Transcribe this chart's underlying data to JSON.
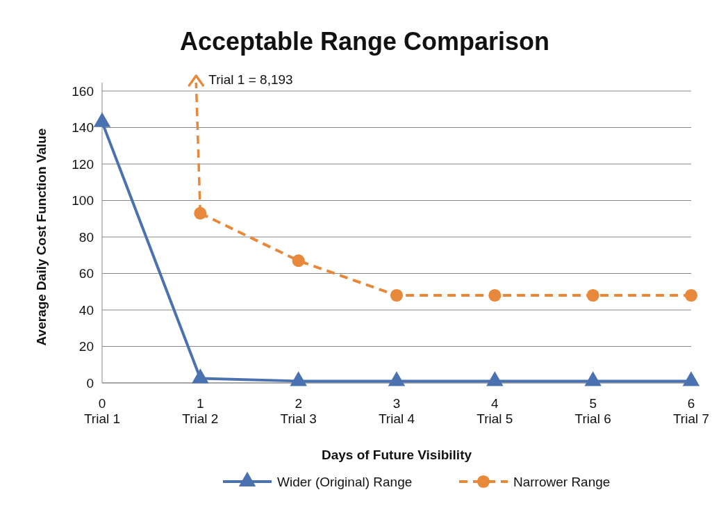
{
  "chart_data": {
    "type": "line",
    "title": "Acceptable Range Comparison",
    "xlabel": "Days of Future Visibility",
    "ylabel": "Average Daily Cost Function Value",
    "categories": [
      "0\nTrial 1",
      "1\nTrial 2",
      "2\nTrial 3",
      "3\nTrial 4",
      "4\nTrial 5",
      "5\nTrial 6",
      "6\nTrial 7"
    ],
    "series": [
      {
        "name": "Wider (Original) Range",
        "color": "#4a72b0",
        "values": [
          143,
          2.5,
          1,
          1,
          1,
          1,
          1
        ],
        "marker": "triangle",
        "line_style": "solid"
      },
      {
        "name": "Narrower Range",
        "color": "#e8883a",
        "values": [
          null,
          93,
          67,
          48,
          48,
          48,
          48
        ],
        "marker": "circle",
        "line_style": "dashed"
      }
    ],
    "ylim": [
      0,
      160
    ],
    "yticks": [
      0,
      20,
      40,
      60,
      80,
      100,
      120,
      140,
      160
    ],
    "grid": "y",
    "legend": "bottom",
    "annotations": [
      {
        "text": "Trial 1 = 8,193",
        "x": "1\nTrial 2",
        "y": 93
      }
    ]
  }
}
